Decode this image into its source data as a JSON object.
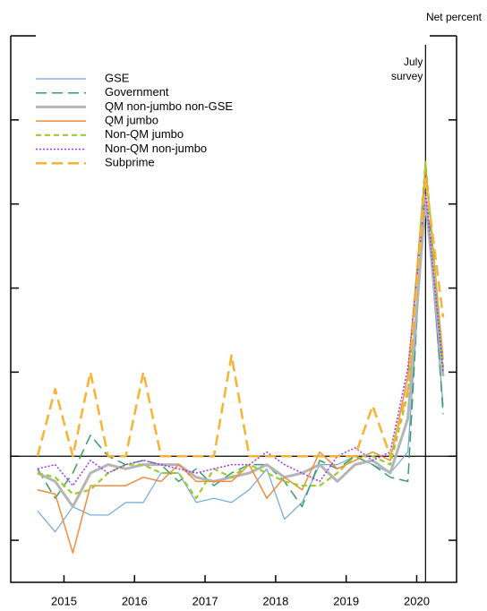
{
  "chart_data": {
    "type": "line",
    "axis_label": "Net percent",
    "vline": {
      "x": 2020.25,
      "label_lines": [
        "July",
        "survey"
      ]
    },
    "x": [
      2014.75,
      2015.0,
      2015.25,
      2015.5,
      2015.75,
      2016.0,
      2016.25,
      2016.5,
      2016.75,
      2017.0,
      2017.25,
      2017.5,
      2017.75,
      2018.0,
      2018.25,
      2018.5,
      2018.75,
      2019.0,
      2019.25,
      2019.5,
      2019.75,
      2020.0,
      2020.25,
      2020.5
    ],
    "xlim": [
      2014.37,
      2020.69
    ],
    "xticks": [
      {
        "value": 2015.125,
        "label": "2015"
      },
      {
        "value": 2016.125,
        "label": "2016"
      },
      {
        "value": 2017.125,
        "label": "2017"
      },
      {
        "value": 2018.125,
        "label": "2018"
      },
      {
        "value": 2019.125,
        "label": "2019"
      },
      {
        "value": 2020.125,
        "label": "2020"
      }
    ],
    "ylim": [
      -30,
      100
    ],
    "yticks": [
      -20,
      0,
      20,
      40,
      60,
      80
    ],
    "zero_line": true,
    "legend": "upper left",
    "series": [
      {
        "name": "GSE",
        "color": "#6fa8dc",
        "style": "solid",
        "width": 1.2,
        "values": [
          -13,
          -18,
          -12,
          -14,
          -14,
          -11,
          -11,
          -4,
          -4,
          -11,
          -10,
          -11,
          -8,
          -3,
          -15,
          -11,
          -2,
          -2,
          0,
          -2,
          -4,
          1,
          62,
          12
        ]
      },
      {
        "name": "Government",
        "color": "#3a9a6a",
        "style": "dashed",
        "width": 1.5,
        "values": [
          -3,
          -10,
          -4,
          5,
          0,
          -2,
          -1,
          -2,
          -6,
          -3,
          -7,
          -4,
          -2,
          -2,
          -6,
          -12,
          -1,
          -3,
          0,
          -2,
          -5,
          -6,
          70,
          10
        ]
      },
      {
        "name": "QM non-jumbo non-GSE",
        "color": "#b5b5b5",
        "style": "solid",
        "width": 3,
        "values": [
          -4,
          -6,
          -12,
          -4,
          -2,
          -3,
          -2,
          -2,
          -2,
          -5,
          -6,
          -5,
          -4,
          -2,
          -5,
          -4,
          -2,
          -6,
          -2,
          -1,
          -4,
          9,
          61,
          19
        ]
      },
      {
        "name": "QM jumbo",
        "color": "#f58a3a",
        "style": "solid",
        "width": 1.5,
        "values": [
          -8,
          -9,
          -23,
          -7,
          -7,
          -7,
          -5,
          -6,
          -2,
          -6,
          -6,
          -6,
          -2,
          -10,
          -5,
          -8,
          1,
          -3,
          -1,
          1,
          -1,
          19,
          69,
          23
        ]
      },
      {
        "name": "Non-QM jumbo",
        "color": "#9acd32",
        "style": "dashed-short",
        "width": 2.2,
        "values": [
          -4,
          -5,
          -9,
          -8,
          -4,
          -2,
          -2,
          -4,
          -4,
          -10,
          -3,
          -5,
          -2,
          -4,
          -6,
          -7,
          -7,
          -4,
          0,
          0,
          -2,
          15,
          70,
          21
        ]
      },
      {
        "name": "Non-QM non-jumbo",
        "color": "#9933ff",
        "style": "dotted",
        "width": 1.5,
        "values": [
          -3,
          -2,
          -7,
          -1,
          -4,
          -2,
          -1,
          -2,
          -3,
          -4,
          -3,
          -2,
          -2,
          1,
          -2,
          -4,
          -6,
          0,
          2,
          -1,
          1,
          21,
          63,
          20
        ]
      },
      {
        "name": "Subprime",
        "color": "#f9b233",
        "style": "dashed",
        "width": 2.5,
        "values": [
          0,
          16,
          0,
          20,
          0,
          0,
          20,
          0,
          0,
          0,
          0,
          24,
          0,
          0,
          0,
          0,
          0,
          0,
          0,
          12,
          0,
          16,
          66,
          33
        ]
      }
    ]
  }
}
